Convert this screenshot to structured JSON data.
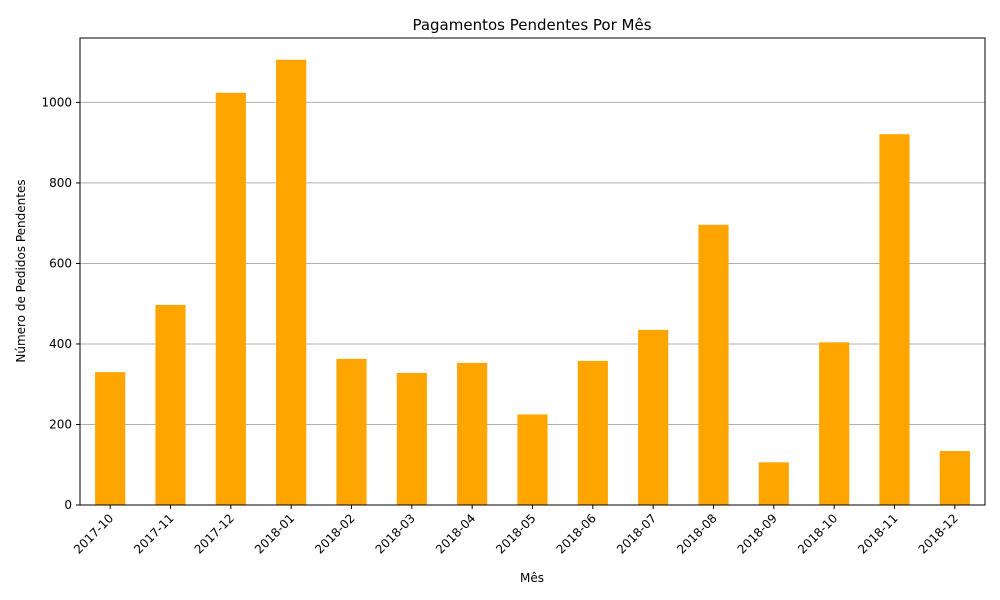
{
  "chart_data": {
    "type": "bar",
    "title": "Pagamentos Pendentes Por Mês",
    "xlabel": "Mês",
    "ylabel": "Número de Pedidos Pendentes",
    "categories": [
      "2017-10",
      "2017-11",
      "2017-12",
      "2018-01",
      "2018-02",
      "2018-03",
      "2018-04",
      "2018-05",
      "2018-06",
      "2018-07",
      "2018-08",
      "2018-09",
      "2018-10",
      "2018-11",
      "2018-12"
    ],
    "values": [
      330,
      497,
      1024,
      1106,
      363,
      328,
      353,
      225,
      358,
      435,
      696,
      106,
      404,
      921,
      134
    ],
    "ylim": [
      0,
      1160
    ],
    "yticks": [
      0,
      200,
      400,
      600,
      800,
      1000
    ],
    "grid": "y-axis only",
    "bar_color": "#FFA500",
    "grid_color": "#b0b0b0"
  }
}
